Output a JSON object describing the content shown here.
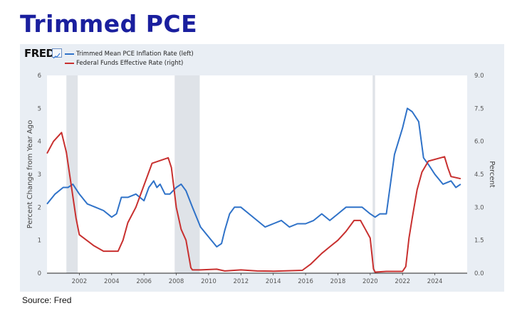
{
  "title": "Trimmed PCE",
  "source": "Source: Fred",
  "logo": "FRED",
  "chart_data": {
    "type": "line",
    "legend_placement": "top-left",
    "grid": false,
    "xlim": [
      2000,
      2026
    ],
    "x_ticks": [
      "2002",
      "2004",
      "2006",
      "2008",
      "2010",
      "2012",
      "2014",
      "2016",
      "2018",
      "2020",
      "2022",
      "2024"
    ],
    "y_left_label": "Percent Change from Year Ago",
    "y_left_lim": [
      0,
      6
    ],
    "y_left_ticks": [
      "0",
      "1",
      "2",
      "3",
      "4",
      "5",
      "6"
    ],
    "y_right_label": "Percent",
    "y_right_lim": [
      0,
      9
    ],
    "y_right_ticks": [
      "0.0",
      "1.5",
      "3.0",
      "4.5",
      "6.0",
      "7.5",
      "9.0"
    ],
    "recessions": [
      [
        2001.2,
        2001.9
      ],
      [
        2007.9,
        2009.45
      ],
      [
        2020.15,
        2020.3
      ]
    ],
    "series": [
      {
        "name": "Trimmed Mean PCE Inflation Rate (left)",
        "axis": "left",
        "color": "#2f72c8",
        "x": [
          2000.0,
          2000.5,
          2001.0,
          2001.3,
          2001.6,
          2002.0,
          2002.5,
          2003.0,
          2003.5,
          2004.0,
          2004.3,
          2004.6,
          2005.0,
          2005.5,
          2006.0,
          2006.3,
          2006.6,
          2006.8,
          2007.0,
          2007.3,
          2007.6,
          2008.0,
          2008.3,
          2008.6,
          2009.0,
          2009.5,
          2010.0,
          2010.5,
          2010.8,
          2011.0,
          2011.3,
          2011.6,
          2012.0,
          2012.5,
          2013.0,
          2013.5,
          2014.0,
          2014.5,
          2015.0,
          2015.5,
          2016.0,
          2016.5,
          2017.0,
          2017.5,
          2018.0,
          2018.5,
          2019.0,
          2019.5,
          2020.0,
          2020.3,
          2020.6,
          2021.0,
          2021.5,
          2022.0,
          2022.3,
          2022.6,
          2023.0,
          2023.3,
          2023.6,
          2024.0,
          2024.5,
          2025.0,
          2025.3,
          2025.6
        ],
        "values": [
          2.1,
          2.4,
          2.6,
          2.6,
          2.7,
          2.4,
          2.1,
          2.0,
          1.9,
          1.7,
          1.8,
          2.3,
          2.3,
          2.4,
          2.2,
          2.6,
          2.8,
          2.6,
          2.7,
          2.4,
          2.4,
          2.6,
          2.7,
          2.5,
          2.0,
          1.4,
          1.1,
          0.8,
          0.9,
          1.3,
          1.8,
          2.0,
          2.0,
          1.8,
          1.6,
          1.4,
          1.5,
          1.6,
          1.4,
          1.5,
          1.5,
          1.6,
          1.8,
          1.6,
          1.8,
          2.0,
          2.0,
          2.0,
          1.8,
          1.7,
          1.8,
          1.8,
          3.6,
          4.4,
          5.0,
          4.9,
          4.6,
          3.5,
          3.3,
          3.0,
          2.7,
          2.8,
          2.6,
          2.7
        ]
      },
      {
        "name": "Federal Funds Effective Rate (right)",
        "axis": "right",
        "color": "#c8302f",
        "x": [
          2000.0,
          2000.4,
          2000.9,
          2001.2,
          2001.5,
          2001.8,
          2002.0,
          2002.9,
          2003.5,
          2004.4,
          2004.7,
          2005.0,
          2005.5,
          2006.0,
          2006.5,
          2007.5,
          2007.7,
          2008.0,
          2008.3,
          2008.6,
          2008.9,
          2009.0,
          2009.5,
          2010.5,
          2011.0,
          2012.0,
          2013.0,
          2014.0,
          2015.8,
          2016.3,
          2017.0,
          2017.5,
          2018.0,
          2018.5,
          2019.0,
          2019.4,
          2019.7,
          2020.0,
          2020.2,
          2020.3,
          2021.0,
          2022.0,
          2022.2,
          2022.4,
          2022.6,
          2022.9,
          2023.2,
          2023.6,
          2024.6,
          2024.8,
          2025.0,
          2025.6
        ],
        "values": [
          5.45,
          6.0,
          6.4,
          5.5,
          4.0,
          2.5,
          1.75,
          1.25,
          1.0,
          1.0,
          1.5,
          2.3,
          3.0,
          4.0,
          5.0,
          5.25,
          4.8,
          3.0,
          2.0,
          1.5,
          0.25,
          0.15,
          0.15,
          0.18,
          0.1,
          0.15,
          0.1,
          0.09,
          0.13,
          0.4,
          0.9,
          1.2,
          1.5,
          1.9,
          2.4,
          2.4,
          2.0,
          1.6,
          0.2,
          0.05,
          0.08,
          0.08,
          0.3,
          1.6,
          2.5,
          3.8,
          4.6,
          5.1,
          5.3,
          4.8,
          4.4,
          4.3
        ]
      }
    ]
  }
}
